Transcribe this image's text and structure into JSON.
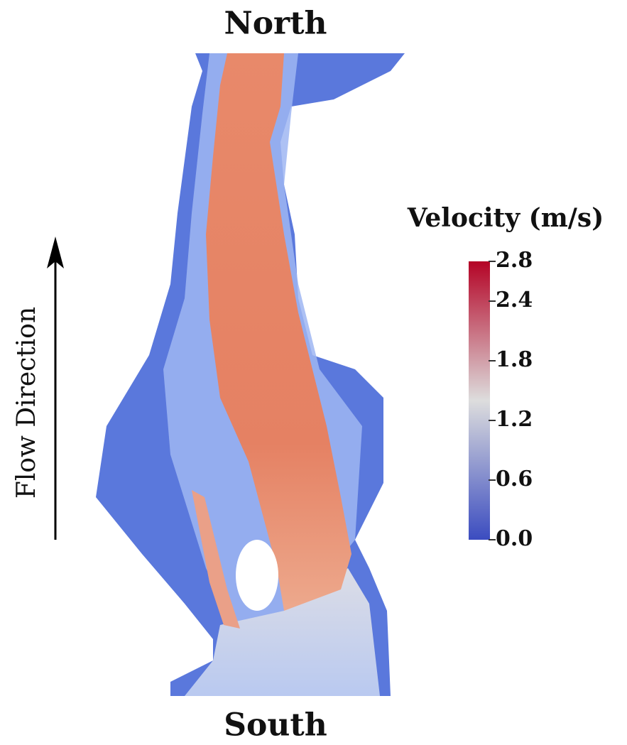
{
  "chart_data": {
    "type": "field",
    "top_label": "North",
    "bottom_label": "South",
    "side_label": "Flow Direction",
    "colorbar_title": "Velocity (m/s)",
    "clim": [
      0,
      2.8
    ],
    "cticks": [
      {
        "value": 0,
        "label": "0.0"
      },
      0.6,
      1.2,
      1.8,
      2.4,
      2.8
    ],
    "colormap": [
      "#3b4cc0",
      "#dddddd",
      "#b40426"
    ]
  }
}
